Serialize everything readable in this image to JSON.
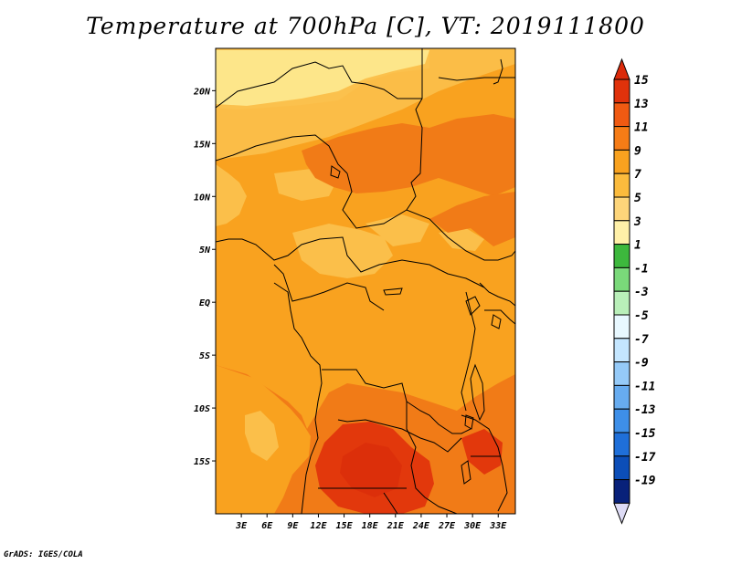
{
  "title": "Temperature at 700hPa [C], VT: 2019111800",
  "credit": "GrADS: IGES/COLA",
  "map": {
    "lon_range": [
      0,
      35
    ],
    "lat_range": [
      -20,
      24
    ],
    "lon_ticks": [
      "3E",
      "6E",
      "9E",
      "12E",
      "15E",
      "18E",
      "21E",
      "24E",
      "27E",
      "30E",
      "33E"
    ],
    "lon_tick_values": [
      3,
      6,
      9,
      12,
      15,
      18,
      21,
      24,
      27,
      30,
      33
    ],
    "lat_ticks": [
      "20N",
      "15N",
      "10N",
      "5N",
      "EQ",
      "5S",
      "10S",
      "15S"
    ],
    "lat_tick_values": [
      20,
      15,
      10,
      5,
      0,
      -5,
      -10,
      -15
    ],
    "background_level": "9-11 C",
    "field_colors": {
      "c5_7": "#fde68a",
      "c7_9": "#fbbf4a",
      "c9_11": "#f9a21f",
      "c11_13": "#f17b17",
      "c13_15": "#e2380c"
    }
  },
  "colorbar": {
    "labels": [
      "15",
      "13",
      "11",
      "9",
      "7",
      "5",
      "3",
      "1",
      "-1",
      "-3",
      "-5",
      "-7",
      "-9",
      "-11",
      "-13",
      "-15",
      "-17",
      "-19"
    ],
    "colors": [
      "#e0320b",
      "#f05a12",
      "#f67c16",
      "#f9a21f",
      "#fbbb3d",
      "#fdd57a",
      "#fff0a8",
      "#3db83d",
      "#7ad97a",
      "#b9efb9",
      "#e8f8ff",
      "#c4e6ff",
      "#95caf8",
      "#67acf0",
      "#3e8fe8",
      "#1f6fd9",
      "#0c4eb8",
      "#08217a"
    ],
    "top_arrow_color": "#dc2a0a",
    "bottom_arrow_color": "#dddbf5"
  }
}
